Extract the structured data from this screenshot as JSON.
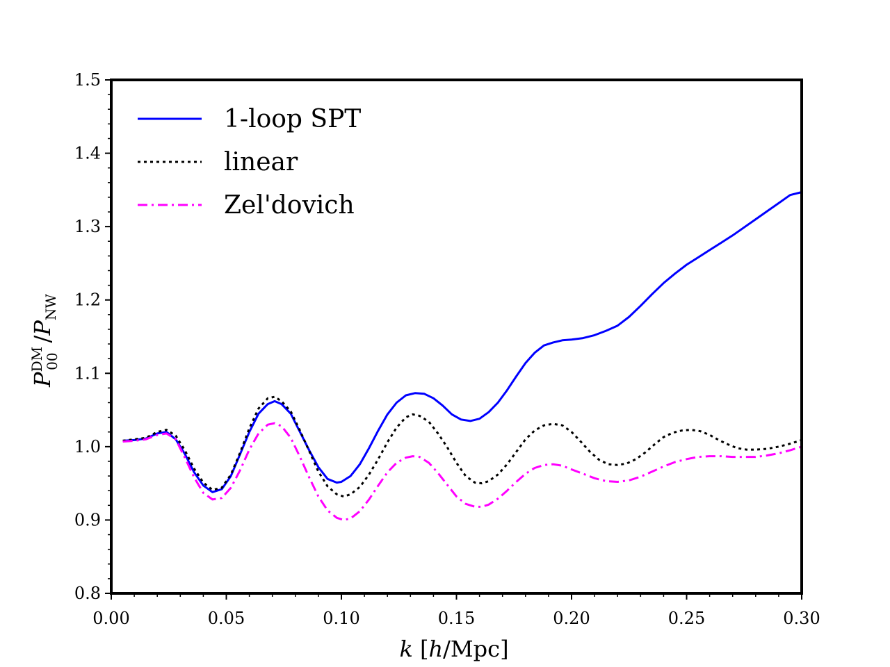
{
  "chart_data": {
    "type": "line",
    "title": "",
    "xlabel": "k [h/Mpc]",
    "ylabel": "P_00^DM / P_NW",
    "xlim": [
      0.0,
      0.3
    ],
    "ylim": [
      0.8,
      1.5
    ],
    "xticks": [
      0.0,
      0.05,
      0.1,
      0.15,
      0.2,
      0.25,
      0.3
    ],
    "xtick_labels": [
      "0.00",
      "0.05",
      "0.10",
      "0.15",
      "0.20",
      "0.25",
      "0.30"
    ],
    "yticks": [
      0.8,
      0.9,
      1.0,
      1.1,
      1.2,
      1.3,
      1.4,
      1.5
    ],
    "ytick_labels": [
      "0.8",
      "0.9",
      "1.0",
      "1.1",
      "1.2",
      "1.3",
      "1.4",
      "1.5"
    ],
    "grid": false,
    "legend_position": "top-left",
    "series": [
      {
        "name": "1-loop SPT",
        "color": "#0000ff",
        "style": "solid",
        "x": [
          0.005,
          0.01,
          0.015,
          0.02,
          0.024,
          0.028,
          0.032,
          0.036,
          0.04,
          0.044,
          0.048,
          0.052,
          0.056,
          0.06,
          0.064,
          0.068,
          0.071,
          0.074,
          0.078,
          0.082,
          0.086,
          0.09,
          0.094,
          0.098,
          0.1,
          0.104,
          0.108,
          0.112,
          0.116,
          0.12,
          0.124,
          0.128,
          0.132,
          0.136,
          0.14,
          0.144,
          0.148,
          0.152,
          0.156,
          0.16,
          0.164,
          0.168,
          0.172,
          0.176,
          0.18,
          0.184,
          0.188,
          0.192,
          0.196,
          0.2,
          0.205,
          0.21,
          0.215,
          0.22,
          0.225,
          0.23,
          0.235,
          0.24,
          0.245,
          0.25,
          0.255,
          0.26,
          0.265,
          0.27,
          0.275,
          0.28,
          0.285,
          0.29,
          0.295,
          0.3
        ],
        "y": [
          1.008,
          1.009,
          1.011,
          1.018,
          1.02,
          1.01,
          0.99,
          0.965,
          0.947,
          0.938,
          0.942,
          0.96,
          0.99,
          1.02,
          1.045,
          1.058,
          1.062,
          1.058,
          1.045,
          1.02,
          0.995,
          0.972,
          0.956,
          0.951,
          0.952,
          0.96,
          0.976,
          0.998,
          1.022,
          1.044,
          1.06,
          1.07,
          1.073,
          1.072,
          1.066,
          1.056,
          1.044,
          1.037,
          1.035,
          1.038,
          1.047,
          1.06,
          1.077,
          1.096,
          1.114,
          1.128,
          1.138,
          1.142,
          1.145,
          1.146,
          1.148,
          1.152,
          1.158,
          1.165,
          1.177,
          1.192,
          1.208,
          1.223,
          1.236,
          1.248,
          1.258,
          1.268,
          1.278,
          1.288,
          1.299,
          1.31,
          1.321,
          1.332,
          1.343,
          1.347
        ]
      },
      {
        "name": "linear",
        "color": "#000000",
        "style": "dotted",
        "x": [
          0.005,
          0.01,
          0.015,
          0.02,
          0.024,
          0.028,
          0.032,
          0.036,
          0.04,
          0.044,
          0.048,
          0.052,
          0.056,
          0.06,
          0.064,
          0.068,
          0.071,
          0.074,
          0.078,
          0.082,
          0.086,
          0.09,
          0.094,
          0.098,
          0.101,
          0.104,
          0.108,
          0.112,
          0.116,
          0.12,
          0.124,
          0.128,
          0.131,
          0.134,
          0.138,
          0.142,
          0.146,
          0.15,
          0.154,
          0.158,
          0.161,
          0.164,
          0.168,
          0.172,
          0.176,
          0.18,
          0.184,
          0.188,
          0.192,
          0.196,
          0.2,
          0.204,
          0.208,
          0.212,
          0.216,
          0.22,
          0.224,
          0.228,
          0.232,
          0.236,
          0.24,
          0.244,
          0.248,
          0.252,
          0.256,
          0.26,
          0.264,
          0.268,
          0.272,
          0.276,
          0.28,
          0.285,
          0.29,
          0.295,
          0.3
        ],
        "y": [
          1.008,
          1.01,
          1.012,
          1.02,
          1.023,
          1.015,
          0.995,
          0.97,
          0.951,
          0.941,
          0.944,
          0.962,
          0.992,
          1.025,
          1.052,
          1.066,
          1.068,
          1.062,
          1.048,
          1.022,
          0.994,
          0.966,
          0.946,
          0.935,
          0.932,
          0.935,
          0.945,
          0.962,
          0.983,
          1.006,
          1.026,
          1.04,
          1.044,
          1.042,
          1.034,
          1.018,
          0.999,
          0.978,
          0.96,
          0.951,
          0.95,
          0.953,
          0.962,
          0.976,
          0.993,
          1.01,
          1.022,
          1.029,
          1.031,
          1.029,
          1.02,
          1.007,
          0.993,
          0.982,
          0.976,
          0.975,
          0.977,
          0.983,
          0.992,
          1.003,
          1.013,
          1.019,
          1.022,
          1.023,
          1.021,
          1.016,
          1.009,
          1.003,
          0.998,
          0.996,
          0.996,
          0.997,
          1.0,
          1.004,
          1.009
        ]
      },
      {
        "name": "Zel'dovich",
        "color": "#ff00ff",
        "style": "dashdot",
        "x": [
          0.005,
          0.01,
          0.015,
          0.02,
          0.024,
          0.028,
          0.032,
          0.036,
          0.04,
          0.044,
          0.048,
          0.052,
          0.056,
          0.06,
          0.064,
          0.068,
          0.071,
          0.074,
          0.078,
          0.082,
          0.086,
          0.09,
          0.094,
          0.098,
          0.101,
          0.104,
          0.108,
          0.112,
          0.116,
          0.12,
          0.124,
          0.128,
          0.131,
          0.134,
          0.138,
          0.142,
          0.146,
          0.15,
          0.154,
          0.158,
          0.161,
          0.164,
          0.168,
          0.172,
          0.176,
          0.18,
          0.184,
          0.188,
          0.192,
          0.196,
          0.2,
          0.205,
          0.21,
          0.215,
          0.22,
          0.225,
          0.23,
          0.235,
          0.24,
          0.245,
          0.25,
          0.255,
          0.26,
          0.265,
          0.27,
          0.275,
          0.28,
          0.285,
          0.29,
          0.295,
          0.3
        ],
        "y": [
          1.007,
          1.008,
          1.01,
          1.016,
          1.018,
          1.01,
          0.985,
          0.958,
          0.937,
          0.928,
          0.93,
          0.944,
          0.968,
          0.996,
          1.018,
          1.03,
          1.032,
          1.028,
          1.012,
          0.986,
          0.958,
          0.932,
          0.913,
          0.903,
          0.9,
          0.902,
          0.912,
          0.928,
          0.947,
          0.965,
          0.978,
          0.985,
          0.987,
          0.986,
          0.978,
          0.964,
          0.948,
          0.932,
          0.922,
          0.918,
          0.918,
          0.921,
          0.929,
          0.94,
          0.952,
          0.963,
          0.971,
          0.975,
          0.976,
          0.974,
          0.969,
          0.963,
          0.957,
          0.953,
          0.952,
          0.954,
          0.959,
          0.966,
          0.973,
          0.979,
          0.983,
          0.986,
          0.987,
          0.987,
          0.986,
          0.986,
          0.986,
          0.988,
          0.991,
          0.995,
          1.0
        ]
      }
    ]
  }
}
